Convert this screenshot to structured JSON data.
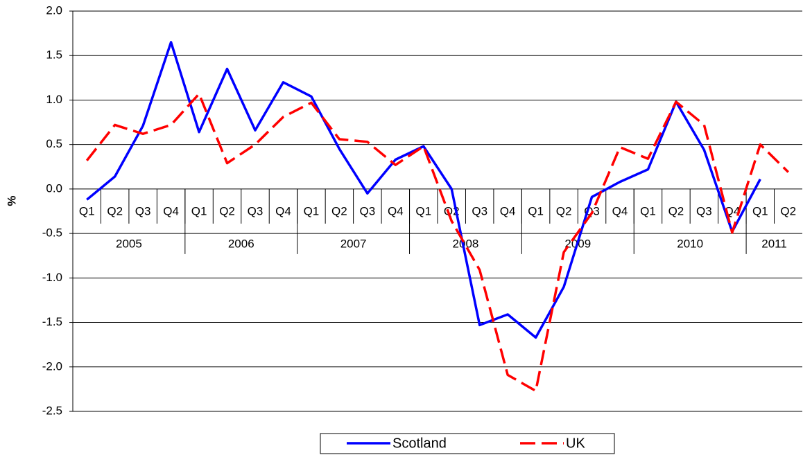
{
  "chart_data": {
    "type": "line",
    "y_label": "%",
    "categories": [
      "Q1",
      "Q2",
      "Q3",
      "Q4",
      "Q1",
      "Q2",
      "Q3",
      "Q4",
      "Q1",
      "Q2",
      "Q3",
      "Q4",
      "Q1",
      "Q2",
      "Q3",
      "Q4",
      "Q1",
      "Q2",
      "Q3",
      "Q4",
      "Q1",
      "Q2",
      "Q3",
      "Q4",
      "Q1",
      "Q2"
    ],
    "groups": [
      {
        "label": "2005",
        "count": 4
      },
      {
        "label": "2006",
        "count": 4
      },
      {
        "label": "2007",
        "count": 4
      },
      {
        "label": "2008",
        "count": 4
      },
      {
        "label": "2009",
        "count": 4
      },
      {
        "label": "2010",
        "count": 4
      },
      {
        "label": "2011",
        "count": 2
      }
    ],
    "series": [
      {
        "name": "Scotland",
        "color": "#0000ff",
        "dash": false,
        "values": [
          -0.12,
          0.14,
          0.71,
          1.65,
          0.64,
          1.35,
          0.66,
          1.2,
          1.04,
          0.45,
          -0.05,
          0.33,
          0.48,
          0.0,
          -1.53,
          -1.41,
          -1.67,
          -1.1,
          -0.09,
          0.08,
          0.22,
          0.98,
          0.44,
          -0.48,
          0.11,
          null
        ]
      },
      {
        "name": "UK",
        "color": "#ff0000",
        "dash": true,
        "values": [
          0.32,
          0.72,
          0.62,
          0.72,
          1.07,
          0.29,
          0.5,
          0.81,
          0.97,
          0.56,
          0.53,
          0.27,
          0.48,
          -0.36,
          -0.91,
          -2.09,
          -2.27,
          -0.71,
          -0.27,
          0.47,
          0.34,
          0.98,
          0.72,
          -0.49,
          0.5,
          0.19
        ]
      }
    ],
    "ylim": [
      -2.5,
      2.0
    ],
    "yticks": [
      {
        "value": -2.5,
        "label": "-2.5"
      },
      {
        "value": -2,
        "label": "-2.0"
      },
      -1.5,
      {
        "value": -1,
        "label": "-1.0"
      },
      -0.5,
      {
        "value": 0,
        "label": "0.0"
      },
      0.5,
      {
        "value": 1,
        "label": "1.0"
      },
      1.5,
      {
        "value": 2,
        "label": "2.0"
      }
    ],
    "grid": true
  }
}
